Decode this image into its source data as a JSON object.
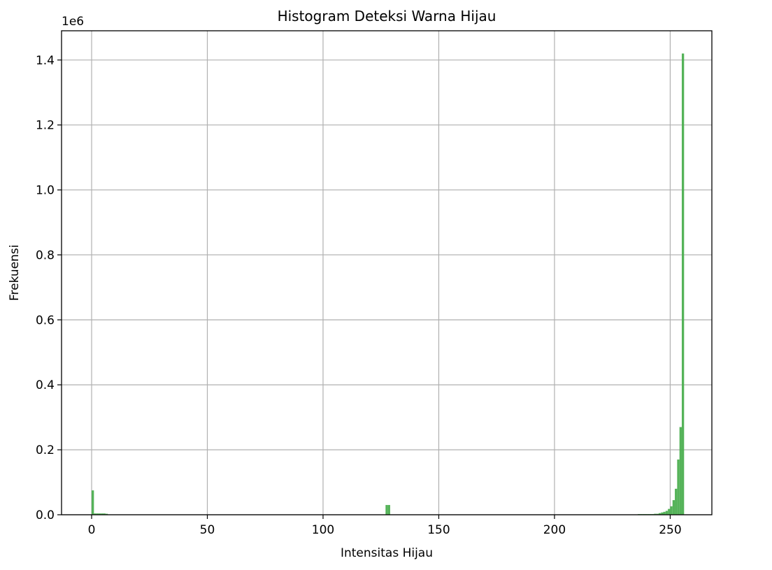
{
  "chart_data": {
    "type": "bar",
    "title": "Histogram Deteksi Warna Hijau",
    "xlabel": "Intensitas Hijau",
    "ylabel": "Frekuensi",
    "y_offset_label": "1e6",
    "xlim": [
      -13,
      268
    ],
    "ylim": [
      0,
      1.49
    ],
    "xticks": [
      0,
      50,
      100,
      150,
      200,
      250
    ],
    "xtick_labels": [
      "0",
      "50",
      "100",
      "150",
      "200",
      "250"
    ],
    "yticks": [
      0.0,
      0.2,
      0.4,
      0.6,
      0.8,
      1.0,
      1.2,
      1.4
    ],
    "ytick_labels": [
      "0.0",
      "0.2",
      "0.4",
      "0.6",
      "0.8",
      "1.0",
      "1.2",
      "1.4"
    ],
    "grid": true,
    "bar_color": "#4caf50",
    "bin_width": 1,
    "bins": [
      {
        "x": 0,
        "value": 0.075
      },
      {
        "x": 1,
        "value": 0.004
      },
      {
        "x": 2,
        "value": 0.004
      },
      {
        "x": 3,
        "value": 0.004
      },
      {
        "x": 4,
        "value": 0.004
      },
      {
        "x": 5,
        "value": 0.004
      },
      {
        "x": 6,
        "value": 0.003
      },
      {
        "x": 127,
        "value": 0.03
      },
      {
        "x": 128,
        "value": 0.03
      },
      {
        "x": 236,
        "value": 0.002
      },
      {
        "x": 237,
        "value": 0.002
      },
      {
        "x": 238,
        "value": 0.002
      },
      {
        "x": 239,
        "value": 0.002
      },
      {
        "x": 240,
        "value": 0.002
      },
      {
        "x": 241,
        "value": 0.002
      },
      {
        "x": 242,
        "value": 0.002
      },
      {
        "x": 243,
        "value": 0.003
      },
      {
        "x": 244,
        "value": 0.003
      },
      {
        "x": 245,
        "value": 0.005
      },
      {
        "x": 246,
        "value": 0.007
      },
      {
        "x": 247,
        "value": 0.009
      },
      {
        "x": 248,
        "value": 0.012
      },
      {
        "x": 249,
        "value": 0.018
      },
      {
        "x": 250,
        "value": 0.026
      },
      {
        "x": 251,
        "value": 0.045
      },
      {
        "x": 252,
        "value": 0.08
      },
      {
        "x": 253,
        "value": 0.17
      },
      {
        "x": 254,
        "value": 0.27
      },
      {
        "x": 255,
        "value": 1.42
      }
    ]
  }
}
